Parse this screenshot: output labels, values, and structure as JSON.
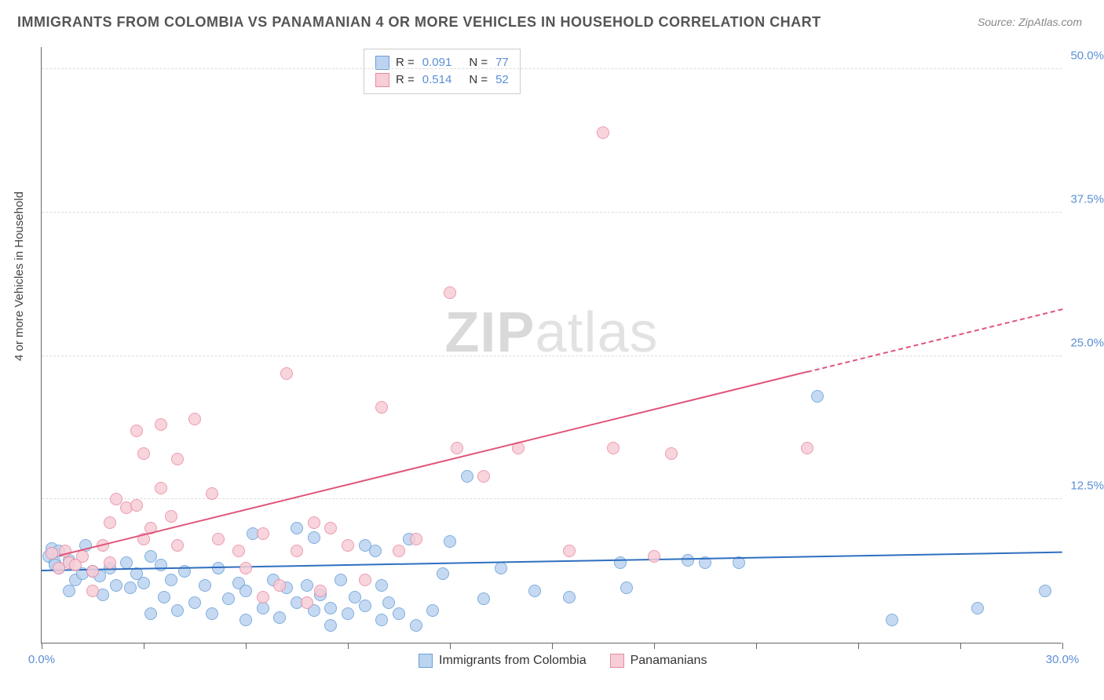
{
  "title": "IMMIGRANTS FROM COLOMBIA VS PANAMANIAN 4 OR MORE VEHICLES IN HOUSEHOLD CORRELATION CHART",
  "source": "Source: ZipAtlas.com",
  "ylabel": "4 or more Vehicles in Household",
  "watermark_a": "ZIP",
  "watermark_b": "atlas",
  "chart": {
    "type": "scatter",
    "xlim": [
      0,
      30
    ],
    "ylim": [
      0,
      52
    ],
    "y_ticks": [
      12.5,
      25.0,
      37.5,
      50.0
    ],
    "y_tick_labels": [
      "12.5%",
      "25.0%",
      "37.5%",
      "50.0%"
    ],
    "x_ticks": [
      0,
      3,
      6,
      9,
      12,
      15,
      18,
      21,
      24,
      27,
      30
    ],
    "x_tick_labels": {
      "0": "0.0%",
      "30": "30.0%"
    },
    "background_color": "#ffffff",
    "grid_color": "#dddddd",
    "series": [
      {
        "name": "Immigrants from Colombia",
        "color_fill": "#bcd4f0",
        "color_stroke": "#6a9fd8",
        "r_value": "0.091",
        "n_value": "77",
        "marker_radius": 8,
        "trend": {
          "x0": 0,
          "y0": 6.2,
          "x1": 30,
          "y1": 7.8,
          "color": "#2f6fc0",
          "solid_until": 30
        },
        "points": [
          [
            0.2,
            7.5
          ],
          [
            0.3,
            8.2
          ],
          [
            0.4,
            7.0
          ],
          [
            0.5,
            6.5
          ],
          [
            0.5,
            8.0
          ],
          [
            0.8,
            7.2
          ],
          [
            0.8,
            4.5
          ],
          [
            1.0,
            5.5
          ],
          [
            1.2,
            6.0
          ],
          [
            1.3,
            8.5
          ],
          [
            1.5,
            6.2
          ],
          [
            1.7,
            5.8
          ],
          [
            1.8,
            4.2
          ],
          [
            2.0,
            6.5
          ],
          [
            2.2,
            5.0
          ],
          [
            2.5,
            7.0
          ],
          [
            2.6,
            4.8
          ],
          [
            2.8,
            6.0
          ],
          [
            3.0,
            5.2
          ],
          [
            3.2,
            7.5
          ],
          [
            3.2,
            2.5
          ],
          [
            3.5,
            6.8
          ],
          [
            3.6,
            4.0
          ],
          [
            3.8,
            5.5
          ],
          [
            4.0,
            2.8
          ],
          [
            4.2,
            6.2
          ],
          [
            4.5,
            3.5
          ],
          [
            4.8,
            5.0
          ],
          [
            5.0,
            2.5
          ],
          [
            5.2,
            6.5
          ],
          [
            5.5,
            3.8
          ],
          [
            5.8,
            5.2
          ],
          [
            6.0,
            4.5
          ],
          [
            6.0,
            2.0
          ],
          [
            6.2,
            9.5
          ],
          [
            6.5,
            3.0
          ],
          [
            6.8,
            5.5
          ],
          [
            7.0,
            2.2
          ],
          [
            7.2,
            4.8
          ],
          [
            7.5,
            3.5
          ],
          [
            7.5,
            10.0
          ],
          [
            7.8,
            5.0
          ],
          [
            8.0,
            2.8
          ],
          [
            8.0,
            9.2
          ],
          [
            8.2,
            4.2
          ],
          [
            8.5,
            3.0
          ],
          [
            8.5,
            1.5
          ],
          [
            8.8,
            5.5
          ],
          [
            9.0,
            2.5
          ],
          [
            9.2,
            4.0
          ],
          [
            9.5,
            8.5
          ],
          [
            9.5,
            3.2
          ],
          [
            9.8,
            8.0
          ],
          [
            10.0,
            5.0
          ],
          [
            10.0,
            2.0
          ],
          [
            10.2,
            3.5
          ],
          [
            10.5,
            2.5
          ],
          [
            10.8,
            9.0
          ],
          [
            11.0,
            1.5
          ],
          [
            11.5,
            2.8
          ],
          [
            11.8,
            6.0
          ],
          [
            12.0,
            8.8
          ],
          [
            12.5,
            14.5
          ],
          [
            13.0,
            3.8
          ],
          [
            13.5,
            6.5
          ],
          [
            14.5,
            4.5
          ],
          [
            15.5,
            4.0
          ],
          [
            17.0,
            7.0
          ],
          [
            17.2,
            4.8
          ],
          [
            19.0,
            7.2
          ],
          [
            19.5,
            7.0
          ],
          [
            20.5,
            7.0
          ],
          [
            22.8,
            21.5
          ],
          [
            25.0,
            2.0
          ],
          [
            27.5,
            3.0
          ],
          [
            29.5,
            4.5
          ],
          [
            0.4,
            6.8
          ]
        ]
      },
      {
        "name": "Panamanians",
        "color_fill": "#f7cdd7",
        "color_stroke": "#e88ba2",
        "r_value": "0.514",
        "n_value": "52",
        "marker_radius": 8,
        "trend": {
          "x0": 0.5,
          "y0": 7.5,
          "x1": 30,
          "y1": 29.0,
          "color": "#e0557a",
          "solid_until": 22.5
        },
        "points": [
          [
            0.3,
            7.8
          ],
          [
            0.5,
            6.5
          ],
          [
            0.7,
            8.0
          ],
          [
            0.8,
            7.0
          ],
          [
            1.0,
            6.8
          ],
          [
            1.2,
            7.5
          ],
          [
            1.5,
            6.2
          ],
          [
            1.5,
            4.5
          ],
          [
            1.8,
            8.5
          ],
          [
            2.0,
            10.5
          ],
          [
            2.0,
            7.0
          ],
          [
            2.2,
            12.5
          ],
          [
            2.5,
            11.8
          ],
          [
            2.8,
            12.0
          ],
          [
            2.8,
            18.5
          ],
          [
            3.0,
            9.0
          ],
          [
            3.0,
            16.5
          ],
          [
            3.2,
            10.0
          ],
          [
            3.5,
            13.5
          ],
          [
            3.5,
            19.0
          ],
          [
            3.8,
            11.0
          ],
          [
            4.0,
            16.0
          ],
          [
            4.0,
            8.5
          ],
          [
            4.5,
            19.5
          ],
          [
            5.0,
            13.0
          ],
          [
            5.2,
            9.0
          ],
          [
            5.8,
            8.0
          ],
          [
            6.0,
            6.5
          ],
          [
            6.5,
            9.5
          ],
          [
            7.0,
            5.0
          ],
          [
            7.5,
            8.0
          ],
          [
            7.2,
            23.5
          ],
          [
            8.0,
            10.5
          ],
          [
            8.2,
            4.5
          ],
          [
            8.5,
            10.0
          ],
          [
            9.0,
            8.5
          ],
          [
            9.5,
            5.5
          ],
          [
            10.0,
            20.5
          ],
          [
            10.5,
            8.0
          ],
          [
            11.0,
            9.0
          ],
          [
            12.0,
            30.5
          ],
          [
            12.2,
            17.0
          ],
          [
            13.0,
            14.5
          ],
          [
            14.0,
            17.0
          ],
          [
            15.5,
            8.0
          ],
          [
            16.5,
            44.5
          ],
          [
            16.8,
            17.0
          ],
          [
            18.0,
            7.5
          ],
          [
            18.5,
            16.5
          ],
          [
            22.5,
            17.0
          ],
          [
            7.8,
            3.5
          ],
          [
            6.5,
            4.0
          ]
        ]
      }
    ]
  },
  "legend_bottom": [
    {
      "label": "Immigrants from Colombia",
      "fill": "#bcd4f0",
      "stroke": "#6a9fd8"
    },
    {
      "label": "Panamanians",
      "fill": "#f7cdd7",
      "stroke": "#e88ba2"
    }
  ]
}
